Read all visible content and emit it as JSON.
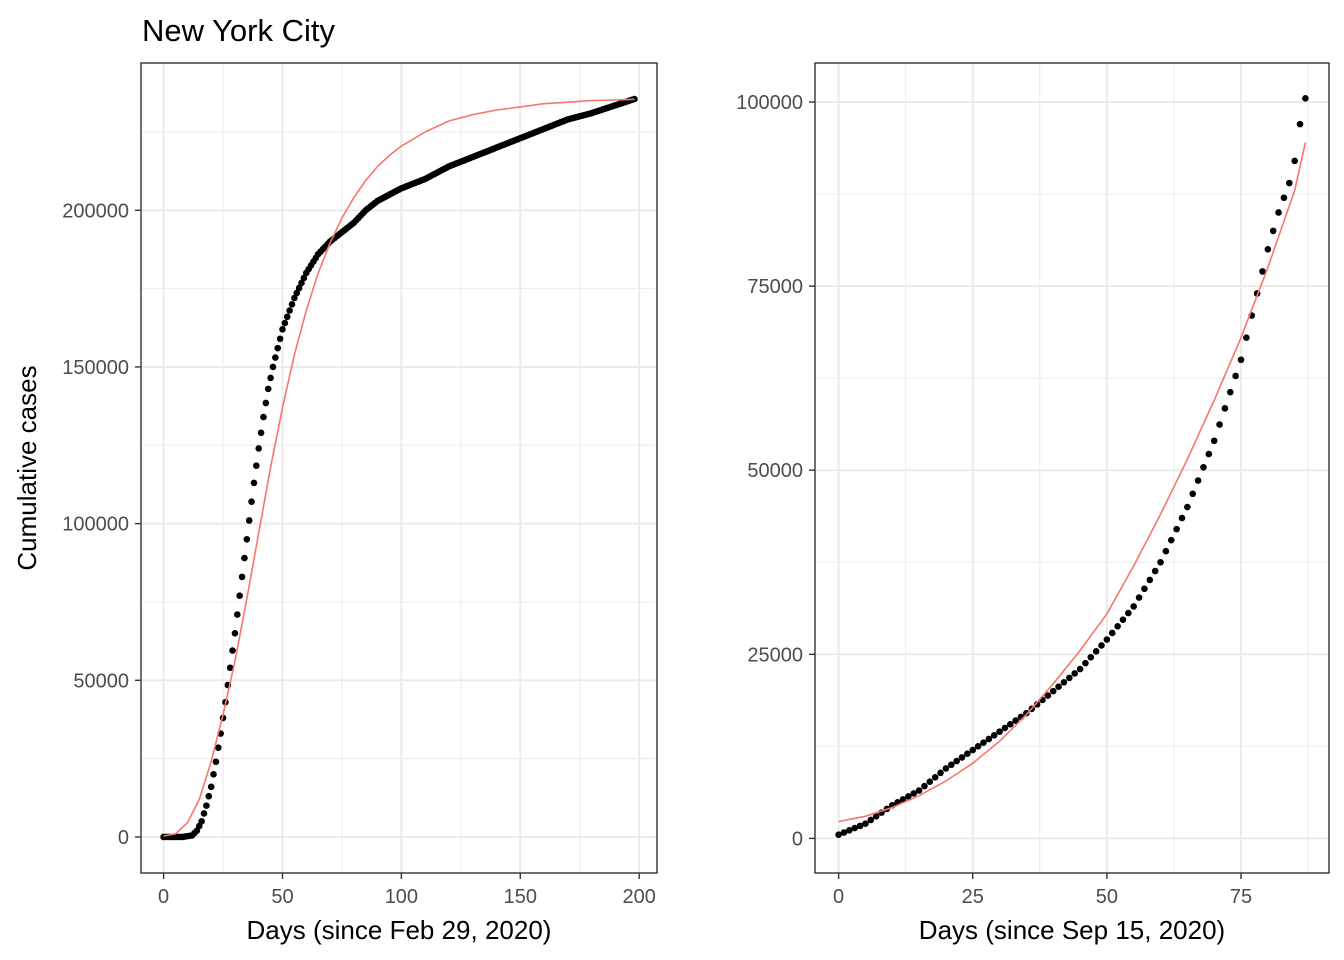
{
  "title": "New York City",
  "chart_data": [
    {
      "type": "scatter",
      "xlabel": "Days (since Feb 29, 2020)",
      "ylabel": "Cumulative cases",
      "xlim": [
        -9.5,
        207.5
      ],
      "ylim": [
        -11500,
        247000
      ],
      "xticks": [
        0,
        50,
        100,
        150,
        200
      ],
      "yticks": [
        0,
        50000,
        100000,
        150000,
        200000
      ],
      "grid": true,
      "point_color": "#000000",
      "fit_color": "#F8766D",
      "series": [
        {
          "kind": "points",
          "x_range": [
            0,
            198
          ],
          "x_step": 1,
          "y_at": [
            [
              0,
              0
            ],
            [
              8,
              0
            ],
            [
              12,
              500
            ],
            [
              14,
              2000
            ],
            [
              16,
              5000
            ],
            [
              18,
              10000
            ],
            [
              20,
              16000
            ],
            [
              22,
              24000
            ],
            [
              24,
              33000
            ],
            [
              26,
              43000
            ],
            [
              28,
              54000
            ],
            [
              30,
              65000
            ],
            [
              32,
              77000
            ],
            [
              34,
              89000
            ],
            [
              36,
              101000
            ],
            [
              38,
              113000
            ],
            [
              40,
              124000
            ],
            [
              42,
              134000
            ],
            [
              44,
              143000
            ],
            [
              46,
              150000
            ],
            [
              48,
              156000
            ],
            [
              50,
              162000
            ],
            [
              55,
              172000
            ],
            [
              60,
              180000
            ],
            [
              65,
              186000
            ],
            [
              70,
              190000
            ],
            [
              75,
              193000
            ],
            [
              80,
              196000
            ],
            [
              85,
              200000
            ],
            [
              90,
              203000
            ],
            [
              95,
              205000
            ],
            [
              100,
              207000
            ],
            [
              110,
              210000
            ],
            [
              120,
              214000
            ],
            [
              130,
              217000
            ],
            [
              140,
              220000
            ],
            [
              150,
              223000
            ],
            [
              160,
              226000
            ],
            [
              170,
              229000
            ],
            [
              180,
              231000
            ],
            [
              190,
              233500
            ],
            [
              198,
              235500
            ]
          ]
        },
        {
          "kind": "fit",
          "xy": [
            [
              0,
              300
            ],
            [
              5,
              1000
            ],
            [
              10,
              4500
            ],
            [
              15,
              12000
            ],
            [
              20,
              24000
            ],
            [
              25,
              39000
            ],
            [
              30,
              56000
            ],
            [
              35,
              76000
            ],
            [
              40,
              97000
            ],
            [
              45,
              118000
            ],
            [
              50,
              137000
            ],
            [
              55,
              154000
            ],
            [
              60,
              168000
            ],
            [
              65,
              180000
            ],
            [
              70,
              189500
            ],
            [
              75,
              197500
            ],
            [
              80,
              204000
            ],
            [
              85,
              209500
            ],
            [
              90,
              214000
            ],
            [
              95,
              217500
            ],
            [
              100,
              220500
            ],
            [
              110,
              225000
            ],
            [
              120,
              228500
            ],
            [
              130,
              230500
            ],
            [
              140,
              232000
            ],
            [
              150,
              233000
            ],
            [
              160,
              234000
            ],
            [
              170,
              234500
            ],
            [
              180,
              235000
            ],
            [
              190,
              235200
            ],
            [
              198,
              235400
            ]
          ]
        }
      ]
    },
    {
      "type": "scatter",
      "xlabel": "Days (since Sep 15, 2020)",
      "ylabel": "",
      "xlim": [
        -4.4,
        91.4
      ],
      "ylim": [
        -4700,
        105300
      ],
      "xticks": [
        0,
        25,
        50,
        75
      ],
      "yticks": [
        0,
        25000,
        50000,
        75000,
        100000
      ],
      "grid": true,
      "point_color": "#000000",
      "fit_color": "#F8766D",
      "series": [
        {
          "kind": "points",
          "x_range": [
            0,
            87
          ],
          "x_step": 1,
          "y_at": [
            [
              0,
              500
            ],
            [
              5,
              2000
            ],
            [
              10,
              4500
            ],
            [
              15,
              6500
            ],
            [
              20,
              9500
            ],
            [
              25,
              12000
            ],
            [
              30,
              14500
            ],
            [
              35,
              17000
            ],
            [
              40,
              20000
            ],
            [
              45,
              23000
            ],
            [
              50,
              27000
            ],
            [
              55,
              31500
            ],
            [
              60,
              37500
            ],
            [
              65,
              45000
            ],
            [
              70,
              54000
            ],
            [
              75,
              65000
            ],
            [
              78,
              74000
            ],
            [
              80,
              80000
            ],
            [
              82,
              85000
            ],
            [
              84,
              89000
            ],
            [
              85,
              92000
            ],
            [
              86,
              97000
            ],
            [
              87,
              100500
            ]
          ]
        },
        {
          "kind": "fit",
          "xy": [
            [
              0,
              2300
            ],
            [
              5,
              3000
            ],
            [
              10,
              4200
            ],
            [
              15,
              5800
            ],
            [
              20,
              7800
            ],
            [
              25,
              10200
            ],
            [
              30,
              13200
            ],
            [
              35,
              16800
            ],
            [
              40,
              21000
            ],
            [
              45,
              25500
            ],
            [
              50,
              30500
            ],
            [
              55,
              37000
            ],
            [
              60,
              44000
            ],
            [
              65,
              51500
            ],
            [
              70,
              59500
            ],
            [
              75,
              68000
            ],
            [
              80,
              77500
            ],
            [
              85,
              88000
            ],
            [
              87,
              94500
            ]
          ]
        }
      ]
    }
  ]
}
